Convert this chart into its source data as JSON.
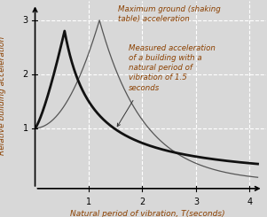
{
  "xlabel": "Natural period of vibration, T(seconds)",
  "ylabel": "Relative building acceleration",
  "xlim": [
    0,
    4.3
  ],
  "ylim": [
    -0.15,
    3.35
  ],
  "xticks": [
    1,
    2,
    3,
    4
  ],
  "yticks": [
    1,
    2,
    3
  ],
  "annotation1": "Maximum ground (shaking\ntable) acceleration",
  "annotation2": "Measured acceleration\nof a building with a\nnatural period of\nvibration of 1.5\nseconds",
  "annotation_color": "#8B4000",
  "background_color": "#d8d8d8",
  "grid_color": "#ffffff",
  "curve_thin_color": "#555555",
  "curve_thick_color": "#111111",
  "curve_thick_lw": 2.0,
  "curve_thin_lw": 0.9,
  "fontsize_axis_label": 6.5,
  "fontsize_annot": 6.2,
  "fontsize_tick": 7
}
